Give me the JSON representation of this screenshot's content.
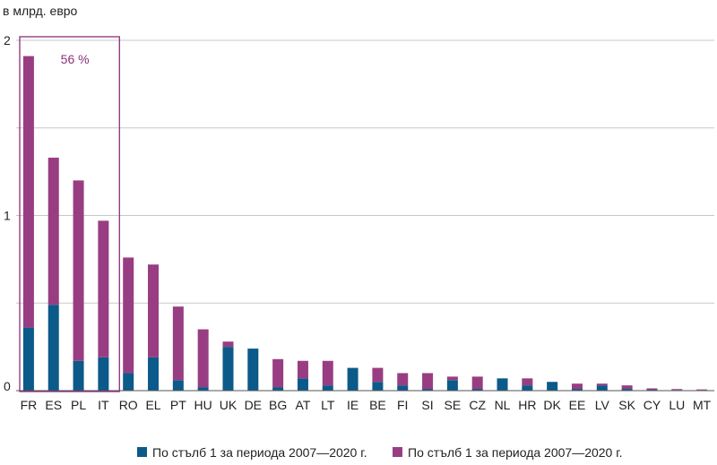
{
  "chart_data": {
    "type": "bar",
    "stacked": true,
    "ylabel": "в млрд. евро",
    "ylim": [
      0,
      2
    ],
    "yticks": [
      "0",
      "1",
      "2"
    ],
    "grid": true,
    "legend_position": "bottom",
    "categories": [
      "FR",
      "ES",
      "PL",
      "IT",
      "RO",
      "EL",
      "PT",
      "HU",
      "UK",
      "DE",
      "BG",
      "AT",
      "LT",
      "IE",
      "BE",
      "FI",
      "SI",
      "SE",
      "CZ",
      "NL",
      "HR",
      "DK",
      "EE",
      "LV",
      "SK",
      "CY",
      "LU",
      "MT"
    ],
    "series": [
      {
        "name": "По стълб 1 за периода 2007—2020 г.",
        "color": "#0b5a8a",
        "values": [
          0.36,
          0.49,
          0.17,
          0.19,
          0.1,
          0.19,
          0.06,
          0.02,
          0.25,
          0.24,
          0.02,
          0.07,
          0.03,
          0.13,
          0.05,
          0.03,
          0.01,
          0.06,
          0.01,
          0.07,
          0.03,
          0.05,
          0.01,
          0.03,
          0.01,
          0.005,
          0.004,
          0.003
        ]
      },
      {
        "name": "По стълб 1 за периода 2007—2020 г.",
        "color": "#993d82",
        "values": [
          1.55,
          0.84,
          1.03,
          0.78,
          0.66,
          0.53,
          0.42,
          0.33,
          0.03,
          0.0,
          0.16,
          0.1,
          0.14,
          0.0,
          0.08,
          0.07,
          0.09,
          0.02,
          0.07,
          0.0,
          0.04,
          0.0,
          0.03,
          0.01,
          0.02,
          0.008,
          0.005,
          0.004
        ]
      }
    ],
    "annotation": {
      "label": "56 %",
      "color": "#8a2f7a",
      "from_category": "FR",
      "to_category": "IT"
    }
  }
}
